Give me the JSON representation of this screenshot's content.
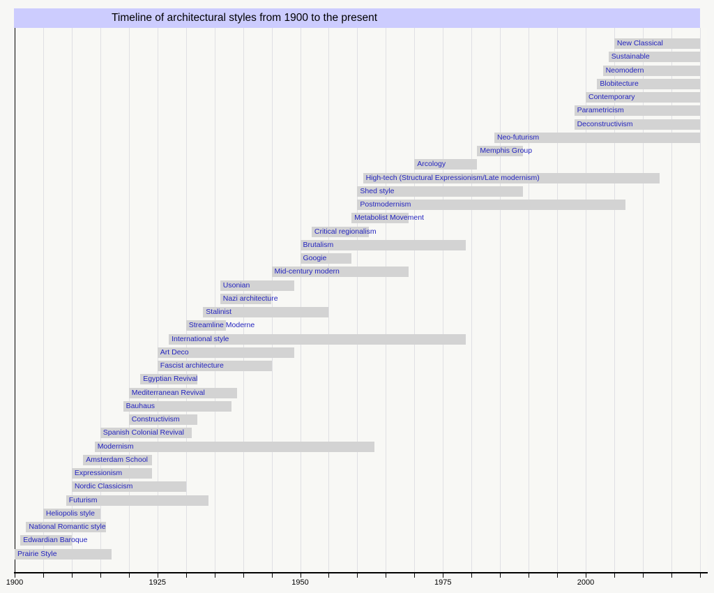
{
  "chart_data": {
    "type": "timeline",
    "title": "Timeline of architectural styles from 1900 to the present",
    "x_axis": {
      "min": 1900,
      "max": 2021,
      "tick_step": 5,
      "label_years": [
        1900,
        1925,
        1950,
        1975,
        2000
      ],
      "tick_labels": [
        "1900",
        "1925",
        "1950",
        "1975",
        "2000"
      ],
      "present_year": 2020,
      "grid": true
    },
    "legend": "none",
    "styles": [
      {
        "label": "New Classical",
        "from": 2005,
        "till": 2020
      },
      {
        "label": "Sustainable",
        "from": 2004,
        "till": 2020
      },
      {
        "label": "Neomodern",
        "from": 2003,
        "till": 2020
      },
      {
        "label": "Blobitecture",
        "from": 2002,
        "till": 2020
      },
      {
        "label": "Contemporary",
        "from": 2000,
        "till": 2020
      },
      {
        "label": "Parametricism",
        "from": 1998,
        "till": 2020
      },
      {
        "label": "Deconstructivism",
        "from": 1998,
        "till": 2020
      },
      {
        "label": "Neo-futurism",
        "from": 1984,
        "till": 2020
      },
      {
        "label": "Memphis Group",
        "from": 1981,
        "till": 1989
      },
      {
        "label": "Arcology",
        "from": 1970,
        "till": 1981
      },
      {
        "label": "High-tech (Structural Expressionism/Late modernism)",
        "from": 1961,
        "till": 2013
      },
      {
        "label": "Shed style",
        "from": 1960,
        "till": 1989
      },
      {
        "label": "Postmodernism",
        "from": 1960,
        "till": 2007
      },
      {
        "label": "Metabolist Movement",
        "from": 1959,
        "till": 1969
      },
      {
        "label": "Critical regionalism",
        "from": 1952,
        "till": 1962
      },
      {
        "label": "Brutalism",
        "from": 1950,
        "till": 1979
      },
      {
        "label": "Googie",
        "from": 1950,
        "till": 1959
      },
      {
        "label": "Mid-century modern",
        "from": 1945,
        "till": 1969
      },
      {
        "label": "Usonian",
        "from": 1936,
        "till": 1949
      },
      {
        "label": "Nazi architecture",
        "from": 1936,
        "till": 1945
      },
      {
        "label": "Stalinist",
        "from": 1933,
        "till": 1955
      },
      {
        "label": "Streamline Moderne",
        "from": 1930,
        "till": 1937
      },
      {
        "label": "International style",
        "from": 1927,
        "till": 1979
      },
      {
        "label": "Art Deco",
        "from": 1925,
        "till": 1949
      },
      {
        "label": "Fascist architecture",
        "from": 1925,
        "till": 1945
      },
      {
        "label": "Egyptian Revival",
        "from": 1922,
        "till": 1932
      },
      {
        "label": "Mediterranean Revival",
        "from": 1920,
        "till": 1939
      },
      {
        "label": "Bauhaus",
        "from": 1919,
        "till": 1938
      },
      {
        "label": "Constructivism",
        "from": 1920,
        "till": 1932
      },
      {
        "label": "Spanish Colonial Revival",
        "from": 1915,
        "till": 1931
      },
      {
        "label": "Modernism",
        "from": 1914,
        "till": 1963
      },
      {
        "label": "Amsterdam School",
        "from": 1912,
        "till": 1924
      },
      {
        "label": "Expressionism",
        "from": 1910,
        "till": 1924
      },
      {
        "label": "Nordic Classicism",
        "from": 1910,
        "till": 1930
      },
      {
        "label": "Futurism",
        "from": 1909,
        "till": 1934
      },
      {
        "label": "Heliopolis style",
        "from": 1905,
        "till": 1915
      },
      {
        "label": "National Romantic style",
        "from": 1902,
        "till": 1916
      },
      {
        "label": "Edwardian Baroque",
        "from": 1901,
        "till": 1910
      },
      {
        "label": "Prairie Style",
        "from": 1900,
        "till": 1917
      }
    ],
    "colors": {
      "page_bg": "#f7f7f5",
      "plot_bg": "#f8f8f5",
      "title_bg": "#ccccfe",
      "title_text": "#000000",
      "bar": "#d3d3d3",
      "bar_label": "#2323be",
      "gridline": "#dfdfe3",
      "axis": "#000000"
    }
  }
}
